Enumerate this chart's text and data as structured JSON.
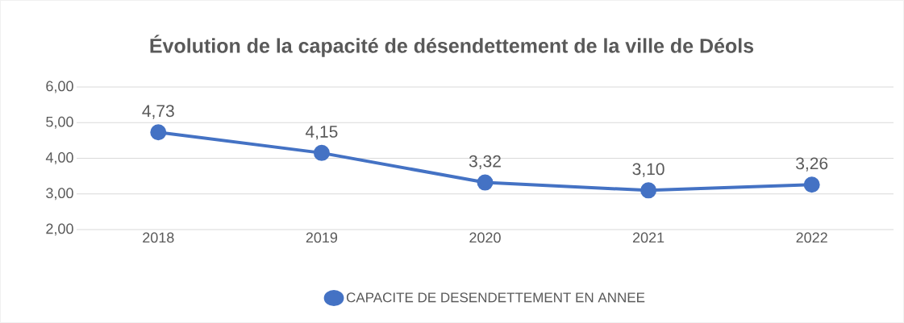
{
  "chart_data": {
    "type": "line",
    "title": "Évolution de la capacité de désendettement de la ville de Déols",
    "categories": [
      "2018",
      "2019",
      "2020",
      "2021",
      "2022"
    ],
    "series": [
      {
        "name": "CAPACITE DE DESENDETTEMENT EN ANNEE",
        "color": "#4472c4",
        "values": [
          4.73,
          4.15,
          3.32,
          3.1,
          3.26
        ],
        "value_labels": [
          "4,73",
          "4,15",
          "3,32",
          "3,10",
          "3,26"
        ]
      }
    ],
    "ylim": [
      2,
      6
    ],
    "yticks": [
      {
        "value": 2,
        "label": "2,00"
      },
      {
        "value": 3,
        "label": "3,00"
      },
      {
        "value": 4,
        "label": "4,00"
      },
      {
        "value": 5,
        "label": "5,00"
      },
      {
        "value": 6,
        "label": "6,00"
      }
    ],
    "grid": "y",
    "legend": "bottom",
    "marker": "circle",
    "line_style": "solid"
  }
}
